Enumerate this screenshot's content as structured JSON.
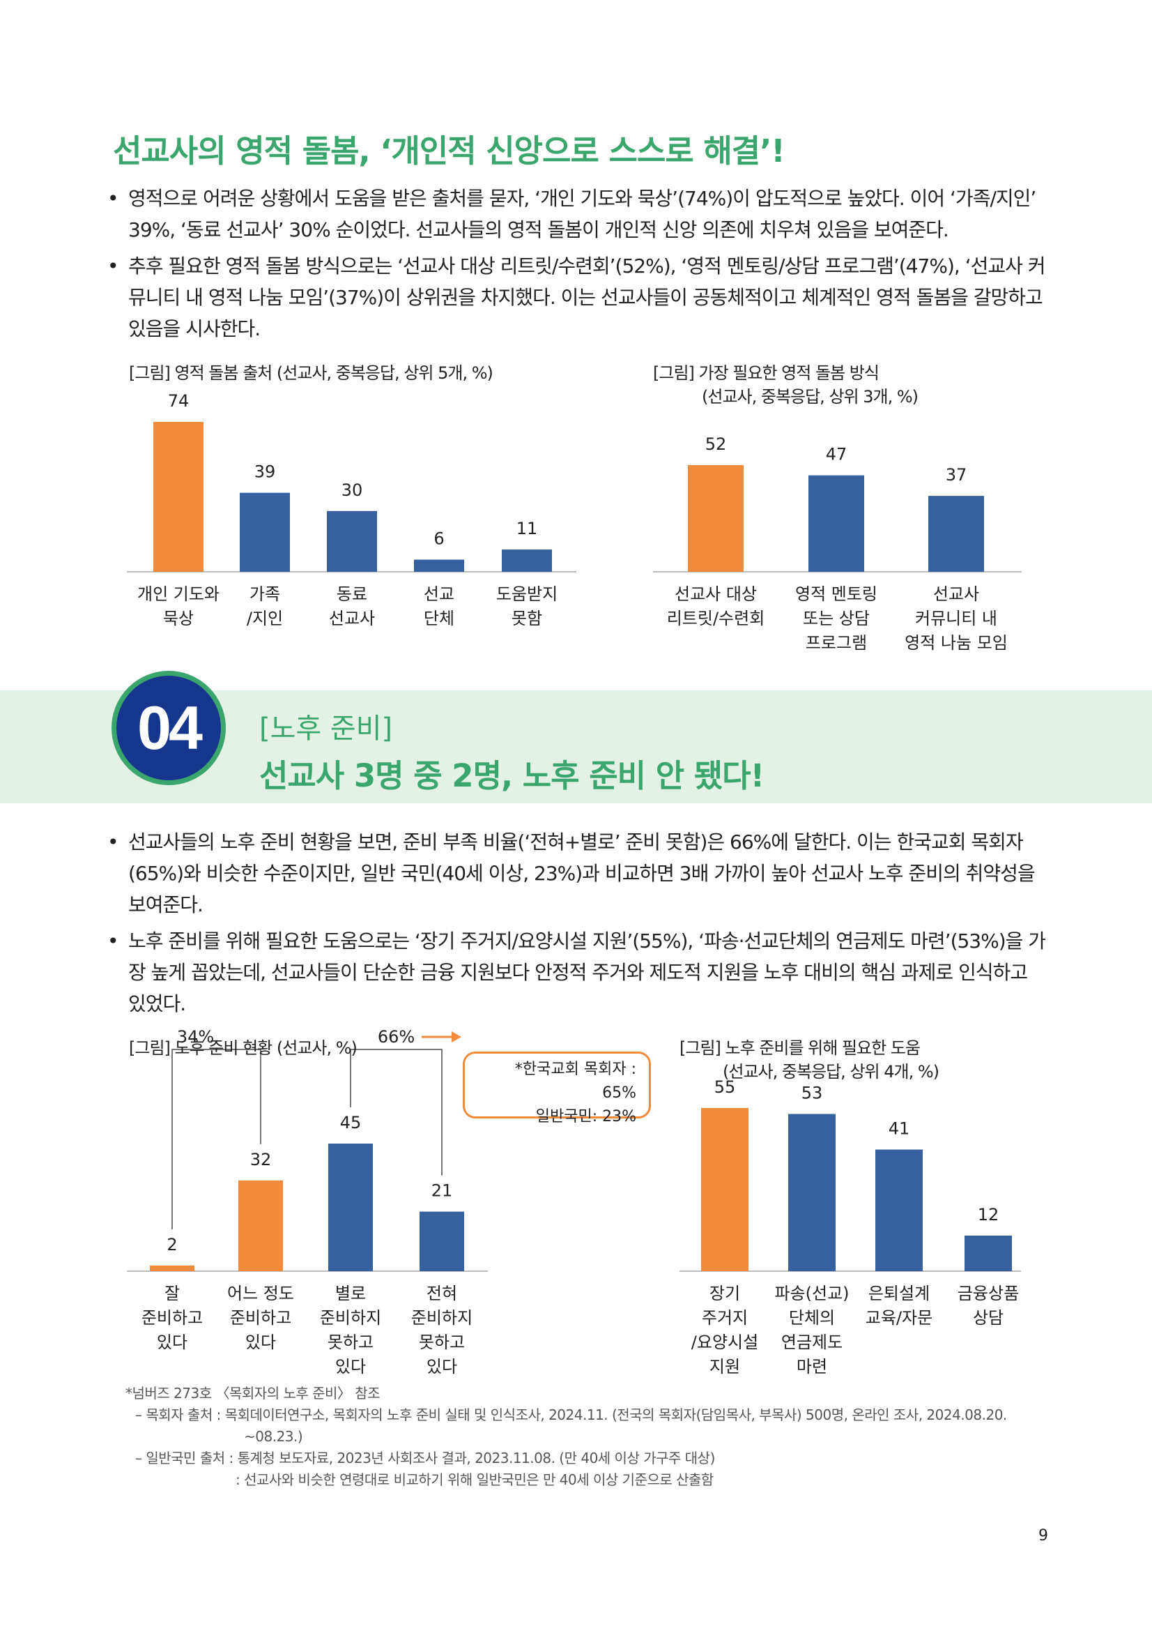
{
  "section1": {
    "heading": "선교사의 영적 돌봄, ‘개인적 신앙으로 스스로 해결’!",
    "bullets": [
      "영적으로 어려운 상황에서 도움을 받은 출처를 묻자, ‘개인 기도와 묵상’(74%)이 압도적으로 높았다. 이어 ‘가족/지인’ 39%, ‘동료 선교사’ 30% 순이었다. 선교사들의 영적 돌봄이 개인적 신앙 의존에 치우쳐 있음을 보여준다.",
      "추후 필요한 영적 돌봄 방식으로는 ‘선교사 대상 리트릿/수련회’(52%), ‘영적 멘토링/상담 프로그램’(47%), ‘선교사 커뮤니티 내 영적 나눔 모임’(37%)이 상위권을 차지했다. 이는 선교사들이 공동체적이고 체계적인 영적 돌봄을 갈망하고 있음을 시사한다."
    ]
  },
  "section2": {
    "number": "04",
    "tag": "[노후 준비]",
    "title": "선교사 3명 중 2명, 노후 준비 안 됐다!",
    "bullets": [
      "선교사들의 노후 준비 현황을 보면, 준비 부족 비율(‘전혀+별로’ 준비 못함)은 66%에 달한다. 이는 한국교회 목회자(65%)와 비슷한 수준이지만, 일반 국민(40세 이상, 23%)과 비교하면 3배 가까이 높아 선교사 노후 준비의 취약성을 보여준다.",
      "노후 준비를 위해 필요한 도움으로는 ‘장기 주거지/요양시설 지원’(55%), ‘파송·선교단체의 연금제도 마련’(53%)을 가장 높게 꼽았는데, 선교사들이 단순한 금융 지원보다 안정적 주거와 제도적 지원을 노후 대비의 핵심 과제로 인식하고 있었다."
    ]
  },
  "callout": [
    "*한국교회 목회자 : 65%",
    "일반국민: 23%"
  ],
  "notes": [
    "*넘버즈 273호 〈목회자의 노후 준비〉 참조",
    "– 목회자 출처 : 목회데이터연구소, 목회자의 노후 준비 실태 및 인식조사, 2024.11. (전국의 목회자(담임목사, 부목사) 500명, 온라인 조사, 2024.08.20.",
    "~08.23.)",
    "– 일반국민 출처 : 통계청 보도자료, 2023년 사회조사 결과, 2023.11.08. (만 40세 이상 가구주 대상)",
    ": 선교사와 비슷한 연령대로 비교하기 위해 일반국민은 만 40세 이상 기준으로 산출함"
  ],
  "page_number": "9",
  "colors": {
    "orange": "#f28a3c",
    "blue": "#36609e",
    "green": "#3aa66e",
    "navy": "#16358c"
  },
  "chart_data": [
    {
      "type": "bar",
      "title": "[그림] 영적 돌봄 출처 (선교사, 중복응답, 상위 5개, %)",
      "categories": [
        [
          "개인 기도와",
          "묵상"
        ],
        [
          "가족",
          "/지인"
        ],
        [
          "동료",
          "선교사"
        ],
        [
          "선교",
          "단체"
        ],
        [
          "도움받지",
          "못함"
        ]
      ],
      "values": [
        74,
        39,
        30,
        6,
        11
      ],
      "highlight": [
        0
      ],
      "ylim": [
        0,
        74
      ]
    },
    {
      "type": "bar",
      "title": [
        "[그림] 가장 필요한 영적 돌봄 방식",
        "(선교사, 중복응답, 상위 3개, %)"
      ],
      "categories": [
        [
          "선교사 대상",
          "리트릿/수련회"
        ],
        [
          "영적 멘토링",
          "또는 상담",
          "프로그램"
        ],
        [
          "선교사",
          "커뮤니티 내",
          "영적 나눔 모임"
        ]
      ],
      "values": [
        52,
        47,
        37
      ],
      "highlight": [
        0
      ],
      "ylim": [
        0,
        52
      ]
    },
    {
      "type": "bar",
      "title": "[그림] 노후 준비 현황 (선교사, %)",
      "categories": [
        [
          "잘",
          "준비하고",
          "있다"
        ],
        [
          "어느 정도",
          "준비하고",
          "있다"
        ],
        [
          "별로",
          "준비하지",
          "못하고",
          "있다"
        ],
        [
          "전혀",
          "준비하지",
          "못하고",
          "있다"
        ]
      ],
      "values": [
        2,
        32,
        45,
        21
      ],
      "highlight": [
        0,
        1
      ],
      "ylim": [
        0,
        45
      ],
      "group_labels": [
        "34%",
        "66%"
      ]
    },
    {
      "type": "bar",
      "title": [
        "[그림] 노후 준비를 위해 필요한 도움",
        "(선교사, 중복응답, 상위 4개, %)"
      ],
      "categories": [
        [
          "장기",
          "주거지",
          "/요양시설",
          "지원"
        ],
        [
          "파송(선교)",
          "단체의",
          "연금제도",
          "마련"
        ],
        [
          "은퇴설계",
          "교육/자문"
        ],
        [
          "금융상품",
          "상담"
        ]
      ],
      "values": [
        55,
        53,
        41,
        12
      ],
      "highlight": [
        0
      ],
      "ylim": [
        0,
        55
      ]
    }
  ]
}
